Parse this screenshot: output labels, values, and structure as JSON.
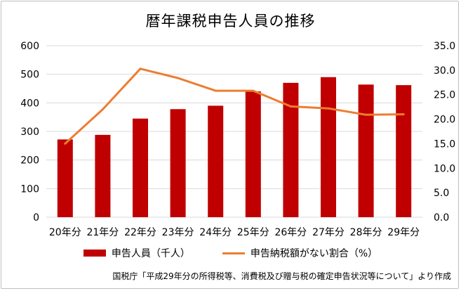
{
  "chart_data": {
    "type": "bar",
    "title": "暦年課税申告人員の推移",
    "categories": [
      "20年分",
      "21年分",
      "22年分",
      "23年分",
      "24年分",
      "25年分",
      "26年分",
      "27年分",
      "28年分",
      "29年分"
    ],
    "series": [
      {
        "name": "申告人員（千人）",
        "type": "bar",
        "axis": "left",
        "color": "#c00000",
        "values": [
          272,
          288,
          345,
          378,
          390,
          440,
          470,
          490,
          464,
          462
        ]
      },
      {
        "name": "申告納税額がない割合（%）",
        "type": "line",
        "axis": "right",
        "color": "#ed7d31",
        "values": [
          15.0,
          22.0,
          30.3,
          28.4,
          25.8,
          25.8,
          22.6,
          22.2,
          20.9,
          21.0
        ]
      }
    ],
    "ylim_left": [
      0,
      600
    ],
    "yticks_left": [
      "0",
      "100",
      "200",
      "300",
      "400",
      "500",
      "600"
    ],
    "ylim_right": [
      0,
      35
    ],
    "yticks_right": [
      "0.0",
      "5.0",
      "10.0",
      "15.0",
      "20.0",
      "25.0",
      "30.0",
      "35.0"
    ],
    "grid": true,
    "legend_position": "bottom"
  },
  "source_note": "国税庁「平成29年分の所得税等、消費税及び贈与税の確定申告状況等について」より作成"
}
